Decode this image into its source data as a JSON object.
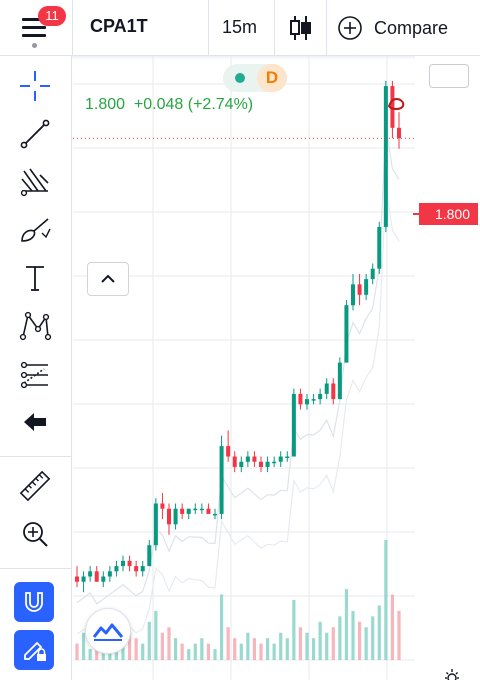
{
  "header": {
    "menu_badge": "11",
    "symbol": "CPA1T",
    "interval": "15m",
    "compare_label": "Compare"
  },
  "legend": {
    "status_dot_color": "#22ab94",
    "session_letter": "D",
    "price_text": "1.800  +0.048 (+2.74%)"
  },
  "price_scale": {
    "last_price": "1.800",
    "last_price_color": "#f23645"
  },
  "toolbar": {
    "items": [
      "crosshair-icon",
      "trend-line-icon",
      "pitchfork-icon",
      "brush-icon",
      "text-icon",
      "pattern-icon",
      "prediction-icon",
      "back-arrow-icon",
      "ruler-icon",
      "zoom-in-icon",
      "magnet-icon",
      "lock-drawing-icon"
    ]
  },
  "chart_data": {
    "type": "candlestick",
    "title": "",
    "xlabel": "",
    "ylabel": "",
    "up_color": "#089981",
    "down_color": "#f23645",
    "last_price": 1.8,
    "change": 0.048,
    "change_percent": 2.74,
    "ylim": [
      0.8,
      1.95
    ],
    "candles": [
      [
        0.96,
        0.98,
        0.94,
        0.95
      ],
      [
        0.95,
        0.97,
        0.93,
        0.96
      ],
      [
        0.96,
        0.98,
        0.95,
        0.97
      ],
      [
        0.97,
        0.98,
        0.95,
        0.95
      ],
      [
        0.95,
        0.97,
        0.94,
        0.96
      ],
      [
        0.96,
        0.98,
        0.95,
        0.97
      ],
      [
        0.97,
        0.99,
        0.96,
        0.98
      ],
      [
        0.98,
        1.0,
        0.97,
        0.99
      ],
      [
        0.99,
        1.0,
        0.97,
        0.98
      ],
      [
        0.98,
        0.99,
        0.96,
        0.97
      ],
      [
        0.97,
        0.99,
        0.96,
        0.98
      ],
      [
        0.98,
        1.03,
        0.98,
        1.02
      ],
      [
        1.02,
        1.11,
        1.01,
        1.1
      ],
      [
        1.1,
        1.12,
        1.07,
        1.09
      ],
      [
        1.09,
        1.1,
        1.04,
        1.06
      ],
      [
        1.06,
        1.1,
        1.05,
        1.09
      ],
      [
        1.09,
        1.1,
        1.07,
        1.08
      ],
      [
        1.08,
        1.09,
        1.07,
        1.09
      ],
      [
        1.09,
        1.1,
        1.08,
        1.09
      ],
      [
        1.09,
        1.1,
        1.08,
        1.09
      ],
      [
        1.09,
        1.1,
        1.08,
        1.08
      ],
      [
        1.08,
        1.09,
        1.07,
        1.08
      ],
      [
        1.08,
        1.23,
        1.07,
        1.21
      ],
      [
        1.21,
        1.24,
        1.18,
        1.19
      ],
      [
        1.19,
        1.2,
        1.16,
        1.17
      ],
      [
        1.17,
        1.19,
        1.16,
        1.18
      ],
      [
        1.18,
        1.2,
        1.17,
        1.19
      ],
      [
        1.19,
        1.2,
        1.17,
        1.18
      ],
      [
        1.18,
        1.19,
        1.16,
        1.17
      ],
      [
        1.17,
        1.19,
        1.16,
        1.18
      ],
      [
        1.18,
        1.19,
        1.17,
        1.18
      ],
      [
        1.18,
        1.2,
        1.17,
        1.19
      ],
      [
        1.19,
        1.2,
        1.18,
        1.19
      ],
      [
        1.19,
        1.32,
        1.19,
        1.31
      ],
      [
        1.31,
        1.32,
        1.28,
        1.29
      ],
      [
        1.29,
        1.31,
        1.28,
        1.3
      ],
      [
        1.3,
        1.31,
        1.29,
        1.3
      ],
      [
        1.3,
        1.32,
        1.29,
        1.31
      ],
      [
        1.31,
        1.34,
        1.3,
        1.33
      ],
      [
        1.33,
        1.34,
        1.29,
        1.3
      ],
      [
        1.3,
        1.38,
        1.3,
        1.37
      ],
      [
        1.37,
        1.49,
        1.37,
        1.48
      ],
      [
        1.48,
        1.54,
        1.47,
        1.52
      ],
      [
        1.52,
        1.54,
        1.48,
        1.5
      ],
      [
        1.5,
        1.54,
        1.49,
        1.53
      ],
      [
        1.53,
        1.56,
        1.52,
        1.55
      ],
      [
        1.55,
        1.64,
        1.54,
        1.63
      ],
      [
        1.63,
        1.91,
        1.62,
        1.9
      ],
      [
        1.9,
        1.91,
        1.8,
        1.82
      ],
      [
        1.82,
        1.85,
        1.78,
        1.8
      ]
    ],
    "volumes": [
      3,
      5,
      2,
      4,
      3,
      6,
      2,
      3,
      5,
      4,
      3,
      7,
      9,
      5,
      6,
      4,
      3,
      2,
      3,
      4,
      3,
      2,
      12,
      6,
      4,
      3,
      5,
      4,
      3,
      4,
      3,
      5,
      4,
      11,
      6,
      5,
      4,
      7,
      5,
      6,
      8,
      13,
      9,
      7,
      6,
      8,
      10,
      22,
      12,
      9
    ]
  }
}
